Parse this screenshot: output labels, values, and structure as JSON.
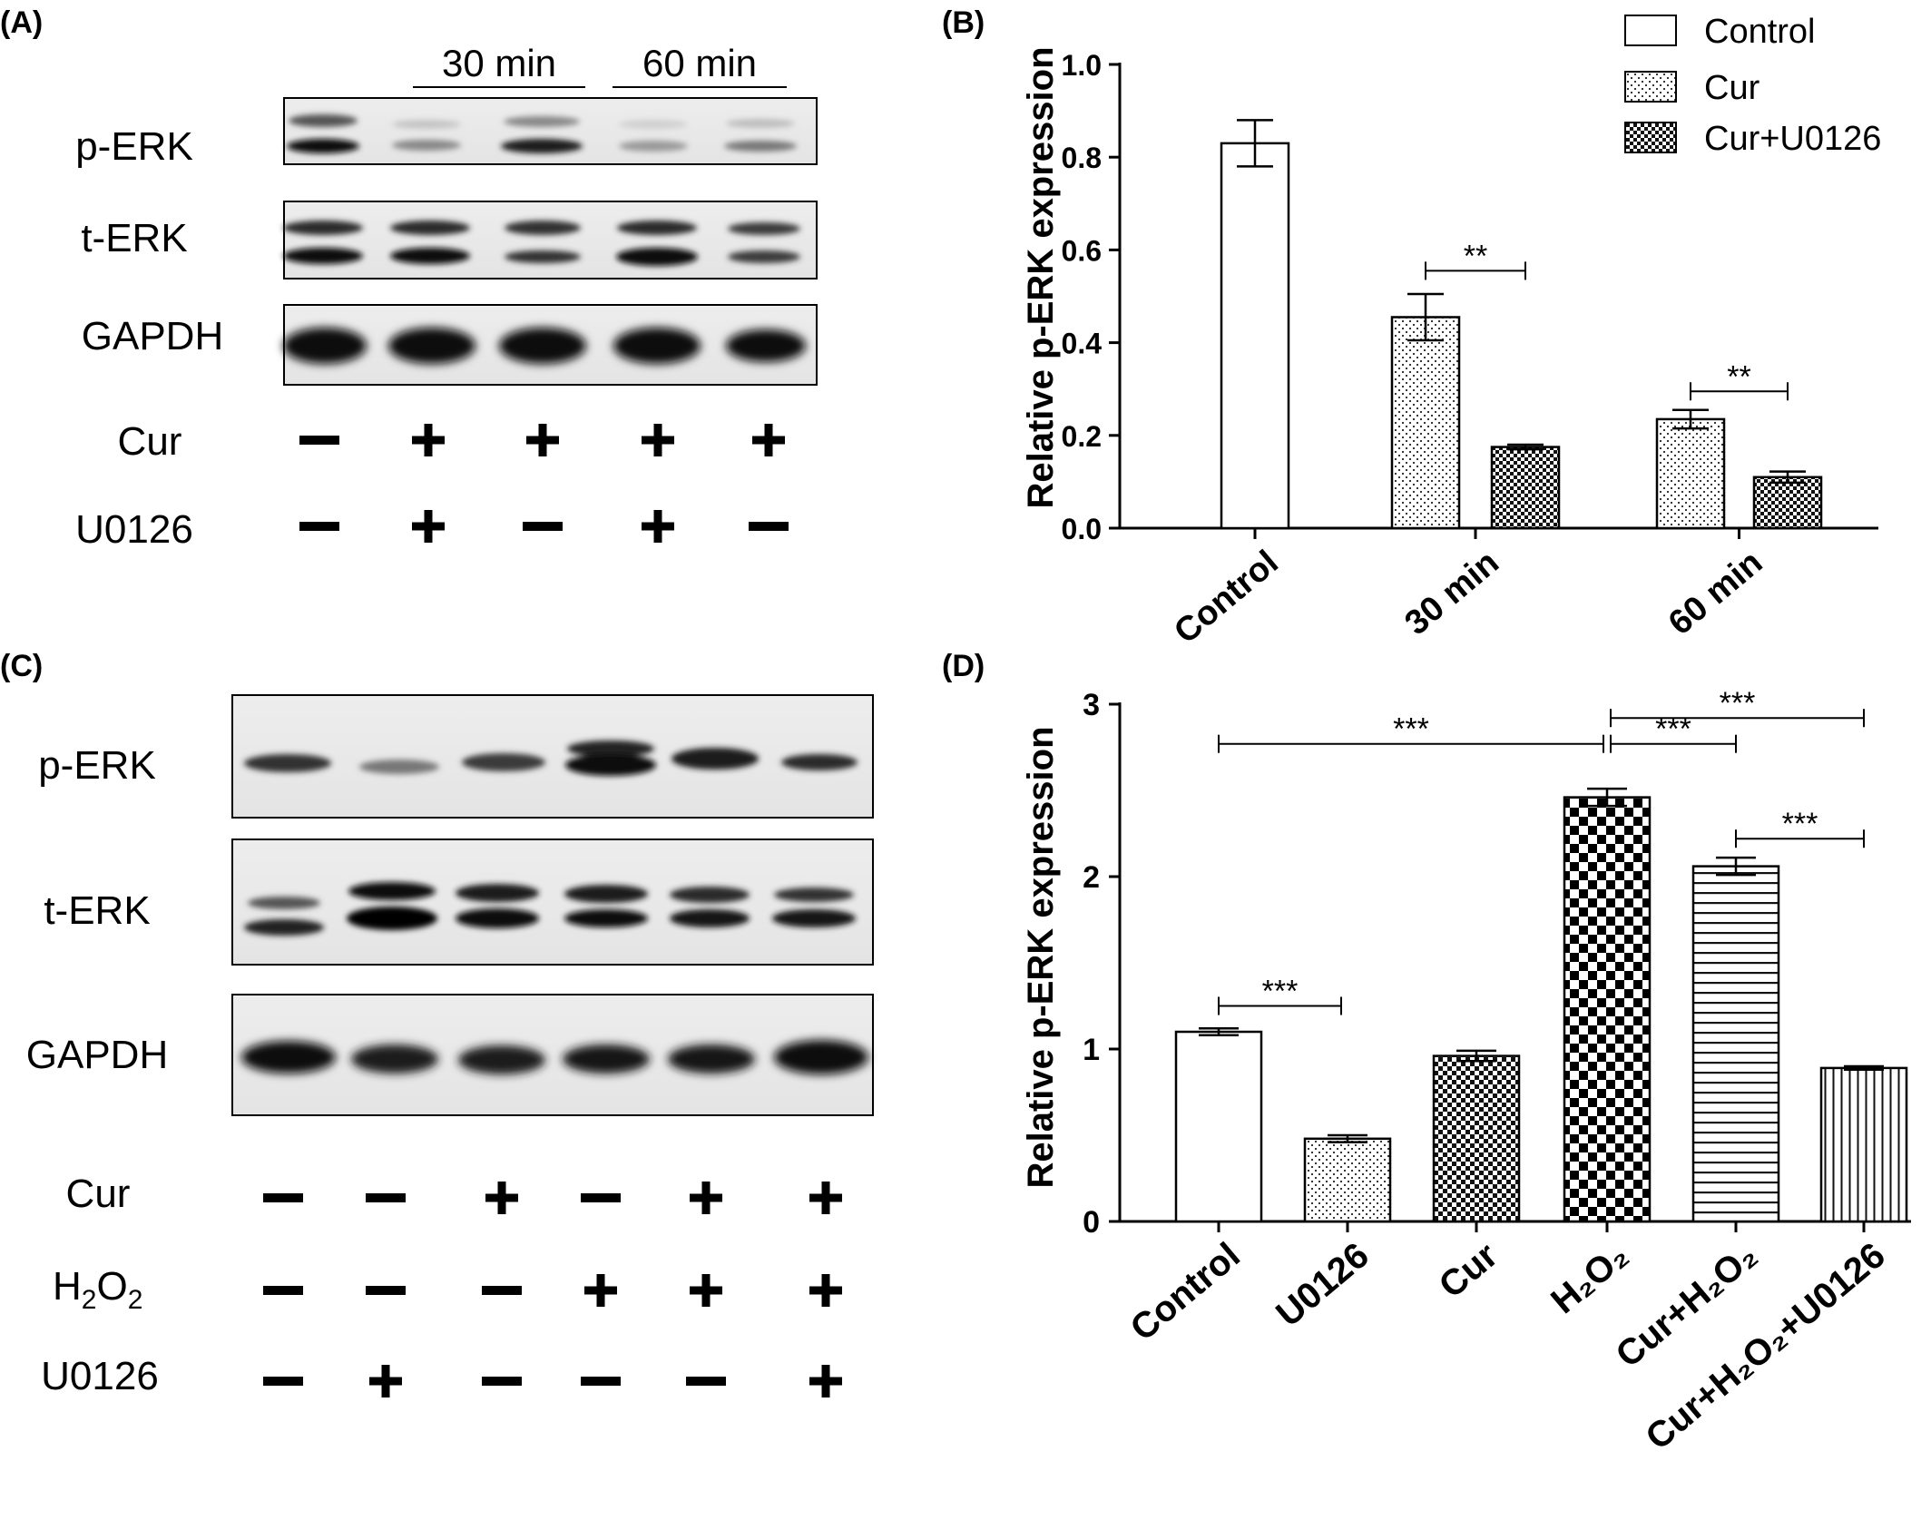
{
  "panels": {
    "a": {
      "label": "(A)",
      "time_labels": [
        "30 min",
        "60 min"
      ],
      "row_labels": [
        "p-ERK",
        "t-ERK",
        "GAPDH"
      ],
      "treatments": [
        {
          "name": "Cur",
          "signs": [
            "−",
            "+",
            "+",
            "+",
            "+"
          ]
        },
        {
          "name": "U0126",
          "signs": [
            "−",
            "+",
            "−",
            "+",
            "−"
          ]
        }
      ]
    },
    "b": {
      "label": "(B)"
    },
    "c": {
      "label": "(C)",
      "row_labels": [
        "p-ERK",
        "t-ERK",
        "GAPDH"
      ],
      "treatments": [
        {
          "name": "Cur",
          "signs": [
            "−",
            "−",
            "+",
            "−",
            "+",
            "+"
          ]
        },
        {
          "name": "H2O2",
          "signs": [
            "−",
            "−",
            "−",
            "+",
            "+",
            "+"
          ]
        },
        {
          "name": "U0126",
          "signs": [
            "−",
            "+",
            "−",
            "−",
            "−",
            "+"
          ]
        }
      ]
    },
    "d": {
      "label": "(D)"
    }
  },
  "chart_data": [
    {
      "type": "bar",
      "panel": "B",
      "categories": [
        "Control",
        "30 min",
        "60 min"
      ],
      "series": [
        {
          "name": "Control",
          "values": [
            0.83,
            null,
            null
          ],
          "errors": [
            0.05,
            null,
            null
          ],
          "pattern": "none"
        },
        {
          "name": "Cur",
          "values": [
            null,
            0.455,
            0.235
          ],
          "errors": [
            null,
            0.05,
            0.02
          ],
          "pattern": "dots"
        },
        {
          "name": "Cur+U0126",
          "values": [
            null,
            0.175,
            0.11
          ],
          "errors": [
            null,
            0.005,
            0.012
          ],
          "pattern": "checker"
        }
      ],
      "ylabel": "Relative p-ERK expression",
      "ylim": [
        0,
        1.0
      ],
      "yticks": [
        "0.0",
        "0.2",
        "0.4",
        "0.6",
        "0.8",
        "1.0"
      ],
      "legend": "top-right",
      "significance": [
        {
          "group": "30 min",
          "text": "**"
        },
        {
          "group": "60 min",
          "text": "**"
        }
      ]
    },
    {
      "type": "bar",
      "panel": "D",
      "categories": [
        "Control",
        "U0126",
        "Cur",
        "H2O2",
        "Cur+H2O2",
        "Cur+H2O2+U0126"
      ],
      "values": [
        1.1,
        0.48,
        0.96,
        2.46,
        2.06,
        0.89
      ],
      "errors": [
        0.02,
        0.02,
        0.03,
        0.05,
        0.05,
        0.01
      ],
      "patterns": [
        "none",
        "dots",
        "checker-small",
        "checker-large",
        "hlines",
        "vlines"
      ],
      "ylabel": "Relative p-ERK expression",
      "ylim": [
        0,
        3
      ],
      "yticks": [
        "0",
        "1",
        "2",
        "3"
      ],
      "significance": [
        {
          "from": "Control",
          "to": "U0126",
          "text": "***"
        },
        {
          "from": "Control",
          "to": "H2O2",
          "text": "***"
        },
        {
          "from": "H2O2",
          "to": "Cur+H2O2",
          "text": "***"
        },
        {
          "from": "H2O2",
          "to": "Cur+H2O2+U0126",
          "text": "***"
        },
        {
          "from": "Cur+H2O2",
          "to": "Cur+H2O2+U0126",
          "text": "***"
        }
      ]
    }
  ]
}
